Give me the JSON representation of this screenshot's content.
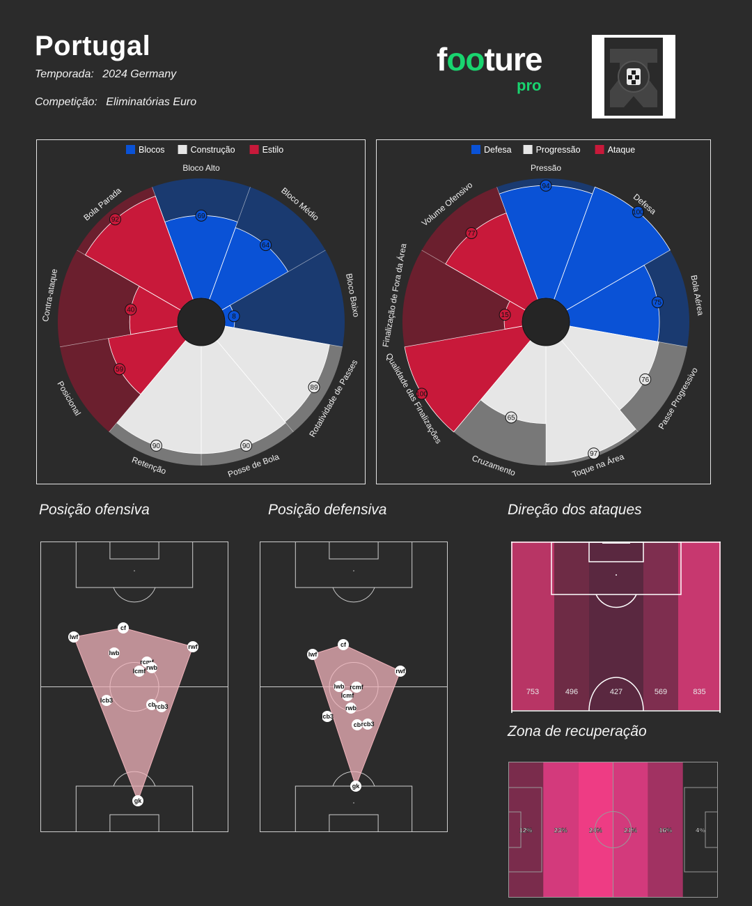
{
  "header": {
    "team": "Portugal",
    "season_label": "Temporada:",
    "season_value": "2024 Germany",
    "competition_label": "Competição:",
    "competition_value": "Eliminatórias Euro"
  },
  "brand": {
    "logo_a": "f",
    "logo_b": "oo",
    "logo_c": "ture",
    "logo_sub": "pro",
    "accent": "#19d46f"
  },
  "crest": {
    "icon": "federation-crest-icon"
  },
  "colors": {
    "blue": "#0a52d6",
    "blue_dark": "#1a3a70",
    "light": "#e6e6e6",
    "light_dark": "#787878",
    "red": "#c8193a",
    "red_dark": "#6b1f2e",
    "hull": "#f0b3bb"
  },
  "chart_data": [
    {
      "type": "polar-bar",
      "legend": [
        {
          "name": "Blocos",
          "color": "#0a52d6"
        },
        {
          "name": "Construção",
          "color": "#e6e6e6"
        },
        {
          "name": "Estilo",
          "color": "#c8193a"
        }
      ],
      "max": 100,
      "categories": [
        "Bloco Alto",
        "Bloco Médio",
        "Bloco Baixo",
        "Rotatividade de Passes",
        "Posse de Bola",
        "Retenção",
        "Posicional",
        "Contra-ataque",
        "Bola Parada"
      ],
      "groups": [
        "Blocos",
        "Blocos",
        "Blocos",
        "Construção",
        "Construção",
        "Construção",
        "Estilo",
        "Estilo",
        "Estilo"
      ],
      "values": [
        69,
        64,
        8,
        89,
        90,
        90,
        59,
        40,
        92
      ]
    },
    {
      "type": "polar-bar",
      "legend": [
        {
          "name": "Defesa",
          "color": "#0a52d6"
        },
        {
          "name": "Progressão",
          "color": "#e6e6e6"
        },
        {
          "name": "Ataque",
          "color": "#c8193a"
        }
      ],
      "max": 100,
      "categories": [
        "Pressão",
        "Defesa",
        "Bola Aérea",
        "Passe Progressivo",
        "Toque na Área",
        "Cruzamento",
        "Qualidade das Finalizações",
        "Finalização de Fora da Área",
        "Volume Ofensivo"
      ],
      "groups": [
        "Defesa",
        "Defesa",
        "Defesa",
        "Progressão",
        "Progressão",
        "Progressão",
        "Ataque",
        "Ataque",
        "Ataque"
      ],
      "values": [
        94,
        100,
        75,
        76,
        97,
        65,
        100,
        15,
        77
      ]
    }
  ],
  "offensive_position": {
    "title": "Posição ofensiva",
    "players": [
      {
        "label": "gk"
      },
      {
        "label": "lcb3"
      },
      {
        "label": "cb"
      },
      {
        "label": "rcb3"
      },
      {
        "label": "lcmf"
      },
      {
        "label": "rcmf"
      },
      {
        "label": "lwb"
      },
      {
        "label": "rwb"
      },
      {
        "label": "lwf"
      },
      {
        "label": "cf"
      },
      {
        "label": "rwf"
      }
    ]
  },
  "defensive_position": {
    "title": "Posição defensiva",
    "players": [
      {
        "label": "gk"
      },
      {
        "label": "lcb3"
      },
      {
        "label": "cb"
      },
      {
        "label": "rcb3"
      },
      {
        "label": "lcmf"
      },
      {
        "label": "rcmf"
      },
      {
        "label": "lwb"
      },
      {
        "label": "rwb"
      },
      {
        "label": "lwf"
      },
      {
        "label": "cf"
      },
      {
        "label": "rwf"
      }
    ]
  },
  "attack_direction": {
    "title": "Direção dos ataques",
    "values": [
      753,
      496,
      427,
      569,
      835
    ],
    "colors": [
      "#b83565",
      "#6e2b45",
      "#5a2840",
      "#7e2e4f",
      "#c7386f"
    ]
  },
  "recovery_zone": {
    "title": "Zona de recuperação",
    "values": [
      "12%",
      "23%",
      "24%",
      "21%",
      "16%",
      "4%"
    ],
    "colors": [
      "#7a2c4c",
      "#d33a7c",
      "#ee3c84",
      "#d33a7c",
      "#a13262",
      "#2b2b2b"
    ]
  }
}
